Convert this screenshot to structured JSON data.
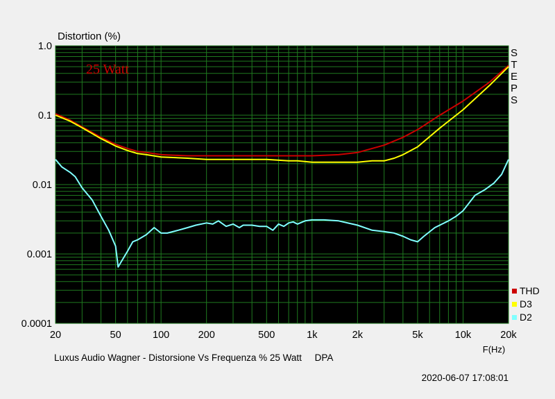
{
  "chart_data": {
    "type": "line",
    "ylabel": "Distortion (%)",
    "xlabel": "F(Hz)",
    "annotation": "25 Watt",
    "steps_label": [
      "S",
      "T",
      "E",
      "P",
      "S"
    ],
    "caption": "Luxus Audio Wagner - Distorsione Vs Frequenza % 25 Watt     DPA",
    "timestamp": "2020-06-07 17:08:01",
    "x_scale": "log",
    "y_scale": "log",
    "xlim": [
      20,
      20000
    ],
    "ylim": [
      0.0001,
      1.0
    ],
    "grid": true,
    "legend_position": "bottom-right",
    "x_ticks": [
      {
        "v": 20,
        "label": "20"
      },
      {
        "v": 50,
        "label": "50"
      },
      {
        "v": 100,
        "label": "100"
      },
      {
        "v": 200,
        "label": "200"
      },
      {
        "v": 500,
        "label": "500"
      },
      {
        "v": 1000,
        "label": "1k"
      },
      {
        "v": 2000,
        "label": "2k"
      },
      {
        "v": 5000,
        "label": "5k"
      },
      {
        "v": 10000,
        "label": "10k"
      },
      {
        "v": 20000,
        "label": "20k"
      }
    ],
    "y_ticks": [
      {
        "v": 1.0,
        "label": "1.0"
      },
      {
        "v": 0.1,
        "label": "0.1"
      },
      {
        "v": 0.01,
        "label": "0.01"
      },
      {
        "v": 0.001,
        "label": "0.001"
      },
      {
        "v": 0.0001,
        "label": "0.0001"
      }
    ],
    "series": [
      {
        "name": "THD",
        "color": "#cc0000",
        "points": [
          [
            20,
            0.105
          ],
          [
            25,
            0.085
          ],
          [
            30,
            0.068
          ],
          [
            40,
            0.048
          ],
          [
            50,
            0.038
          ],
          [
            60,
            0.033
          ],
          [
            70,
            0.03
          ],
          [
            80,
            0.029
          ],
          [
            100,
            0.027
          ],
          [
            150,
            0.026
          ],
          [
            200,
            0.026
          ],
          [
            300,
            0.026
          ],
          [
            500,
            0.026
          ],
          [
            700,
            0.026
          ],
          [
            1000,
            0.026
          ],
          [
            1500,
            0.027
          ],
          [
            2000,
            0.029
          ],
          [
            3000,
            0.037
          ],
          [
            4000,
            0.048
          ],
          [
            5000,
            0.062
          ],
          [
            7000,
            0.1
          ],
          [
            10000,
            0.16
          ],
          [
            15000,
            0.3
          ],
          [
            20000,
            0.52
          ]
        ]
      },
      {
        "name": "D3",
        "color": "#ffff00",
        "points": [
          [
            20,
            0.1
          ],
          [
            25,
            0.082
          ],
          [
            30,
            0.066
          ],
          [
            40,
            0.046
          ],
          [
            50,
            0.036
          ],
          [
            60,
            0.031
          ],
          [
            70,
            0.028
          ],
          [
            80,
            0.027
          ],
          [
            100,
            0.025
          ],
          [
            150,
            0.024
          ],
          [
            200,
            0.023
          ],
          [
            300,
            0.023
          ],
          [
            500,
            0.023
          ],
          [
            700,
            0.022
          ],
          [
            800,
            0.022
          ],
          [
            1000,
            0.021
          ],
          [
            1500,
            0.021
          ],
          [
            2000,
            0.021
          ],
          [
            2500,
            0.022
          ],
          [
            3000,
            0.022
          ],
          [
            3500,
            0.024
          ],
          [
            4000,
            0.027
          ],
          [
            5000,
            0.035
          ],
          [
            7000,
            0.065
          ],
          [
            10000,
            0.12
          ],
          [
            15000,
            0.27
          ],
          [
            20000,
            0.5
          ]
        ]
      },
      {
        "name": "D2",
        "color": "#80ffff",
        "points": [
          [
            20,
            0.023
          ],
          [
            22,
            0.018
          ],
          [
            25,
            0.015
          ],
          [
            27,
            0.013
          ],
          [
            30,
            0.009
          ],
          [
            35,
            0.006
          ],
          [
            40,
            0.0035
          ],
          [
            45,
            0.0022
          ],
          [
            50,
            0.0013
          ],
          [
            52,
            0.00065
          ],
          [
            55,
            0.0008
          ],
          [
            60,
            0.0011
          ],
          [
            65,
            0.0015
          ],
          [
            70,
            0.0016
          ],
          [
            80,
            0.0019
          ],
          [
            90,
            0.0024
          ],
          [
            100,
            0.002
          ],
          [
            110,
            0.002
          ],
          [
            130,
            0.0022
          ],
          [
            150,
            0.0024
          ],
          [
            170,
            0.0026
          ],
          [
            200,
            0.0028
          ],
          [
            220,
            0.0027
          ],
          [
            240,
            0.003
          ],
          [
            270,
            0.0025
          ],
          [
            300,
            0.0027
          ],
          [
            330,
            0.0024
          ],
          [
            350,
            0.0026
          ],
          [
            400,
            0.0026
          ],
          [
            450,
            0.0025
          ],
          [
            500,
            0.0025
          ],
          [
            550,
            0.0022
          ],
          [
            600,
            0.0027
          ],
          [
            650,
            0.0025
          ],
          [
            700,
            0.0028
          ],
          [
            750,
            0.0029
          ],
          [
            800,
            0.0027
          ],
          [
            900,
            0.003
          ],
          [
            1000,
            0.0031
          ],
          [
            1200,
            0.0031
          ],
          [
            1500,
            0.003
          ],
          [
            2000,
            0.0026
          ],
          [
            2500,
            0.0022
          ],
          [
            3000,
            0.0021
          ],
          [
            3500,
            0.002
          ],
          [
            4000,
            0.0018
          ],
          [
            4500,
            0.0016
          ],
          [
            5000,
            0.0015
          ],
          [
            5500,
            0.0018
          ],
          [
            6500,
            0.0024
          ],
          [
            8000,
            0.003
          ],
          [
            9000,
            0.0035
          ],
          [
            10000,
            0.0042
          ],
          [
            12000,
            0.007
          ],
          [
            14000,
            0.0085
          ],
          [
            16000,
            0.0105
          ],
          [
            18000,
            0.014
          ],
          [
            20000,
            0.023
          ]
        ]
      }
    ]
  }
}
